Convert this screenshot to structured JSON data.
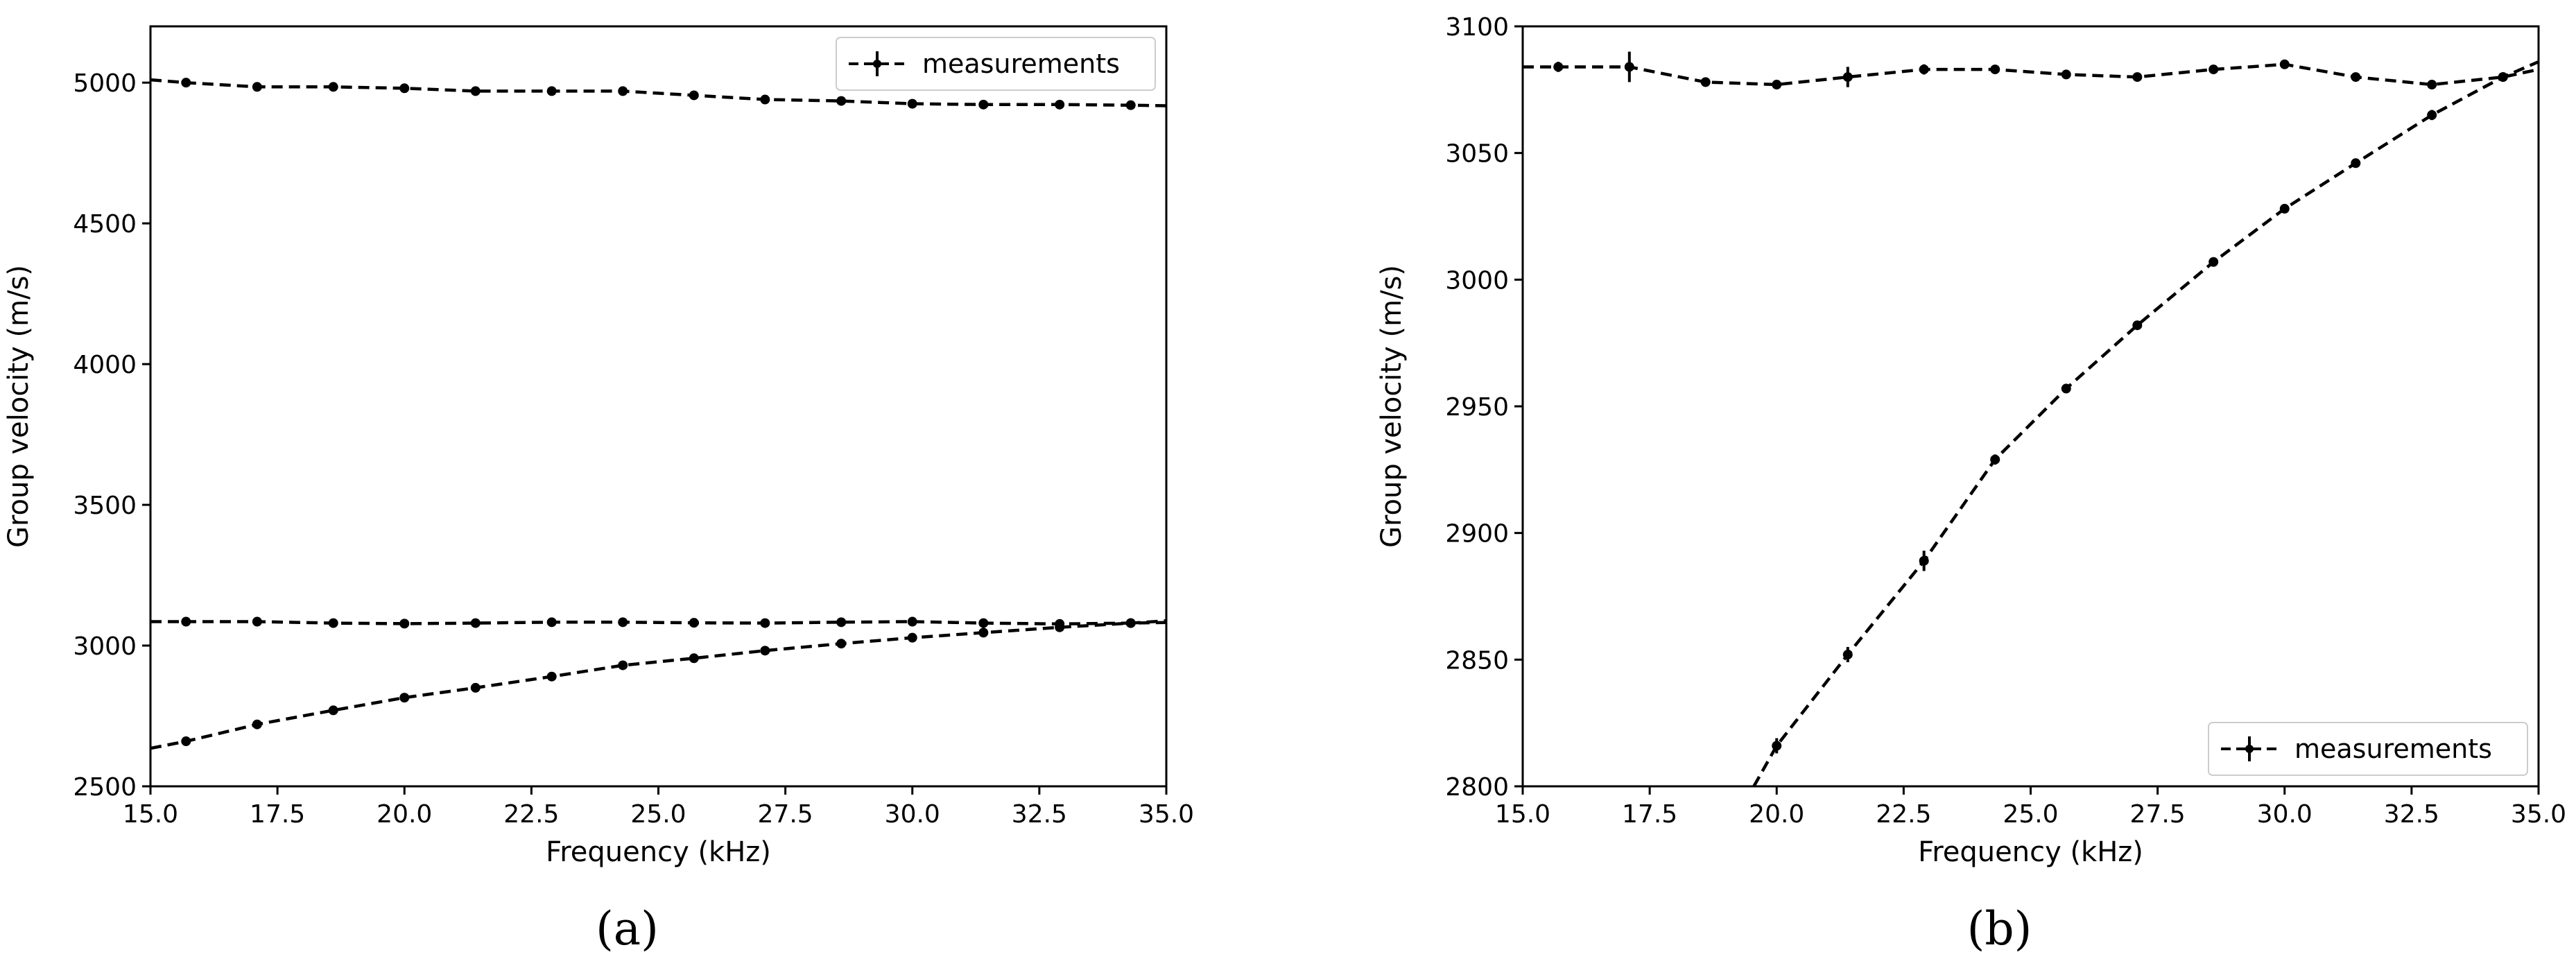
{
  "chart_data": [
    {
      "type": "line",
      "panel_label": "(a)",
      "xlabel": "Frequency (kHz)",
      "ylabel": "Group velocity (m/s)",
      "xlim": [
        15.0,
        35.0
      ],
      "ylim": [
        2500,
        5200
      ],
      "xticks": [
        "15.0",
        "17.5",
        "20.0",
        "22.5",
        "25.0",
        "27.5",
        "30.0",
        "32.5",
        "35.0"
      ],
      "yticks": [
        "2500",
        "3000",
        "3500",
        "4000",
        "4500",
        "5000"
      ],
      "grid": false,
      "legend": {
        "position": "upper right",
        "entries": [
          "measurements"
        ]
      },
      "series": [
        {
          "name": "measurements",
          "style": "black dashed line with dot markers and vertical error bars",
          "x": [
            15.7,
            17.1,
            18.6,
            20.0,
            21.4,
            22.9,
            24.3,
            25.7,
            27.1,
            28.6,
            30.0,
            31.4,
            32.9,
            34.3
          ],
          "y": [
            5000,
            4985,
            4985,
            4980,
            4970,
            4970,
            4970,
            4955,
            4940,
            4935,
            4925,
            4922,
            4922,
            4920
          ],
          "line_ends": [
            [
              15.0,
              5010
            ],
            [
              35.0,
              4918
            ]
          ]
        },
        {
          "style": "black dashed line with dot markers and vertical error bars",
          "x": [
            15.7,
            17.1,
            18.6,
            20.0,
            21.4,
            22.9,
            24.3,
            25.7,
            27.1,
            28.6,
            30.0,
            31.4,
            32.9,
            34.3
          ],
          "y": [
            3085,
            3085,
            3080,
            3078,
            3080,
            3083,
            3083,
            3081,
            3080,
            3083,
            3085,
            3080,
            3077,
            3080
          ],
          "line_ends": [
            [
              15.0,
              3085
            ],
            [
              35.0,
              3082
            ]
          ]
        },
        {
          "style": "black dashed line with dot markers and vertical error bars",
          "x": [
            15.7,
            17.1,
            18.6,
            20.0,
            21.4,
            22.9,
            24.3,
            25.7,
            27.1,
            28.6,
            30.0,
            31.4,
            32.9,
            34.3
          ],
          "y": [
            2660,
            2720,
            2770,
            2815,
            2850,
            2890,
            2930,
            2955,
            2982,
            3007,
            3028,
            3046,
            3065,
            3080
          ],
          "line_ends": [
            [
              15.0,
              2635
            ],
            [
              35.0,
              3088
            ]
          ]
        }
      ]
    },
    {
      "type": "line",
      "panel_label": "(b)",
      "xlabel": "Frequency (kHz)",
      "ylabel": "Group velocity (m/s)",
      "xlim": [
        15.0,
        35.0
      ],
      "ylim": [
        2800,
        3100
      ],
      "xticks": [
        "15.0",
        "17.5",
        "20.0",
        "22.5",
        "25.0",
        "27.5",
        "30.0",
        "32.5",
        "35.0"
      ],
      "yticks": [
        "2800",
        "2850",
        "2900",
        "2950",
        "3000",
        "3050",
        "3100"
      ],
      "grid": false,
      "legend": {
        "position": "lower right",
        "entries": [
          "measurements"
        ]
      },
      "series": [
        {
          "name": "measurements",
          "style": "black dashed line with dot markers and vertical error bars",
          "x": [
            15.7,
            17.1,
            18.6,
            20.0,
            21.4,
            22.9,
            24.3,
            25.7,
            27.1,
            28.6,
            30.0,
            31.4,
            32.9,
            34.3
          ],
          "y": [
            3084,
            3084,
            3078,
            3077,
            3080,
            3083,
            3083,
            3081,
            3080,
            3083,
            3085,
            3080,
            3077,
            3080
          ],
          "err": [
            2,
            6,
            1,
            1,
            4,
            2,
            1,
            1,
            1,
            1,
            1,
            1,
            1,
            1
          ],
          "line_ends": [
            [
              15.0,
              3084
            ],
            [
              35.0,
              3083
            ]
          ]
        },
        {
          "style": "black dashed line with dot markers and vertical error bars",
          "x": [
            20.0,
            21.4,
            22.9,
            24.3,
            25.7,
            27.1,
            28.6,
            30.0,
            31.4,
            32.9,
            34.3
          ],
          "y": [
            2816,
            2852,
            2889,
            2929,
            2957,
            2982,
            3007,
            3028,
            3046,
            3065,
            3080
          ],
          "err": [
            3,
            3,
            4,
            2,
            1,
            1,
            1,
            1,
            1,
            2,
            1
          ],
          "line_ends": [
            [
              19.55,
              2800
            ],
            [
              35.0,
              3086
            ]
          ]
        }
      ]
    }
  ]
}
